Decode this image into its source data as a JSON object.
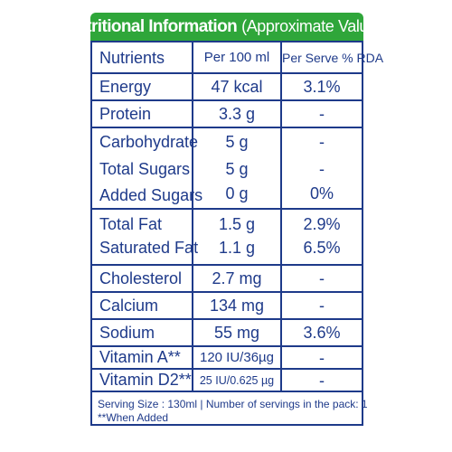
{
  "title": {
    "bold": "Nutritional Information",
    "normal": "(Approximate Values)"
  },
  "columns": {
    "nutrients": "Nutrients",
    "per100": "Per 100 ml",
    "rda": "Per Serve % RDA"
  },
  "rows": [
    {
      "name": "Energy",
      "per100": "47 kcal",
      "rda": "3.1%"
    },
    {
      "name": "Protein",
      "per100": "3.3 g",
      "rda": "-"
    },
    {
      "name": "Carbohydrate",
      "per100": "5 g",
      "rda": "-"
    },
    {
      "name": "Total Sugars",
      "per100": "5 g",
      "rda": "-"
    },
    {
      "name": "Added Sugars",
      "per100": "0 g",
      "rda": "0%"
    },
    {
      "name": "Total Fat",
      "per100": "1.5 g",
      "rda": "2.9%"
    },
    {
      "name": "Saturated Fat",
      "per100": "1.1 g",
      "rda": "6.5%"
    },
    {
      "name": "Cholesterol",
      "per100": "2.7 mg",
      "rda": "-"
    },
    {
      "name": "Calcium",
      "per100": "134 mg",
      "rda": "-"
    },
    {
      "name": "Sodium",
      "per100": "55 mg",
      "rda": "3.6%"
    },
    {
      "name": "Vitamin A**",
      "per100": "120 IU/36µg",
      "rda": "-"
    },
    {
      "name": "Vitamin D2**",
      "per100": "25 IU/0.625 µg",
      "rda": "-"
    }
  ],
  "footer": {
    "serving": "Serving  Size : 130ml | Number of servings in the pack: 1",
    "note": "**When Added"
  }
}
